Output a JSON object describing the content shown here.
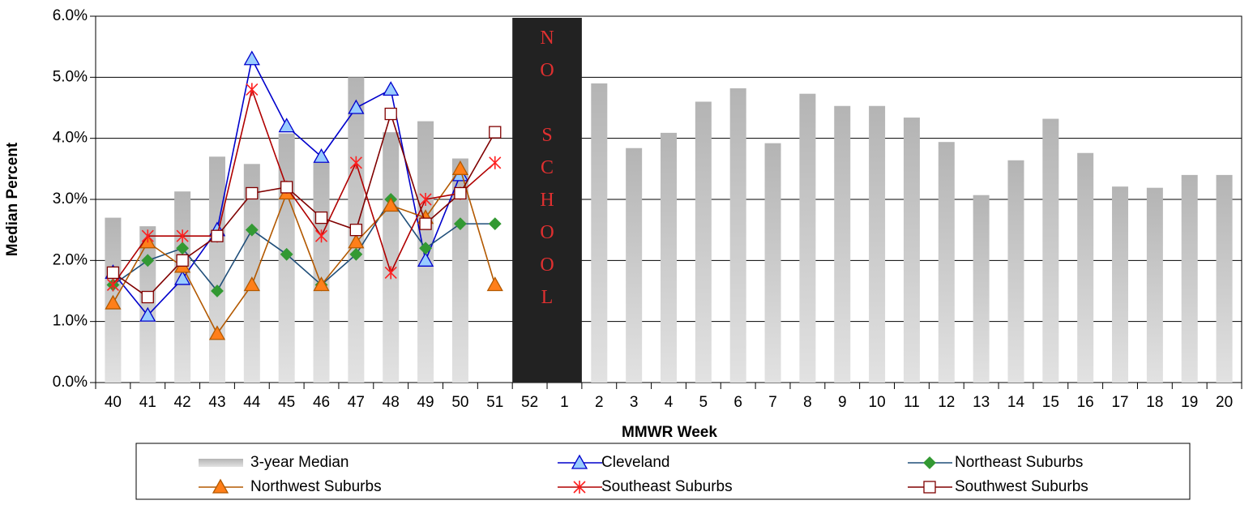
{
  "chart_data": {
    "type": "bar-line",
    "xlabel": "MMWR Week",
    "ylabel": "Median Percent",
    "categories": [
      "40",
      "41",
      "42",
      "43",
      "44",
      "45",
      "46",
      "47",
      "48",
      "49",
      "50",
      "51",
      "52",
      "1",
      "2",
      "3",
      "4",
      "5",
      "6",
      "7",
      "8",
      "9",
      "10",
      "11",
      "12",
      "13",
      "14",
      "15",
      "16",
      "17",
      "18",
      "19",
      "20"
    ],
    "ylim": [
      0,
      6
    ],
    "yticks": [
      {
        "value": 0,
        "label": "0.0%"
      },
      {
        "value": 1,
        "label": "1.0%"
      },
      {
        "value": 2,
        "label": "2.0%"
      },
      {
        "value": 3,
        "label": "3.0%"
      },
      {
        "value": 4,
        "label": "4.0%"
      },
      {
        "value": 5,
        "label": "5.0%"
      },
      {
        "value": 6,
        "label": "6.0%"
      }
    ],
    "grid": true,
    "annotation": {
      "text": "NO SCHOOL",
      "from": "52",
      "to": "1",
      "color": "#222222",
      "text_color": "#e03030"
    },
    "series": [
      {
        "name": "3-year Median",
        "style": "bar",
        "color": "#c0c0c0",
        "values": [
          2.7,
          2.56,
          3.13,
          3.7,
          3.58,
          4.08,
          3.6,
          5.0,
          4.1,
          4.28,
          3.67,
          null,
          null,
          null,
          4.9,
          3.84,
          4.09,
          4.6,
          4.82,
          3.92,
          4.73,
          4.53,
          4.53,
          4.34,
          3.94,
          3.07,
          3.64,
          4.32,
          3.76,
          3.21,
          3.19,
          3.4,
          3.4
        ]
      },
      {
        "name": "Cleveland",
        "style": "line",
        "marker": "triangle",
        "color": "#0000cc",
        "marker_fill": "#99ccff",
        "values": [
          1.8,
          1.1,
          1.7,
          2.5,
          5.3,
          4.2,
          3.7,
          4.5,
          4.8,
          2.0,
          3.4,
          null,
          null,
          null,
          null,
          null,
          null,
          null,
          null,
          null,
          null,
          null,
          null,
          null,
          null,
          null,
          null,
          null,
          null,
          null,
          null,
          null,
          null
        ]
      },
      {
        "name": "Northeast Suburbs",
        "style": "line",
        "marker": "diamond",
        "color": "#1f4e79",
        "marker_fill": "#339933",
        "values": [
          1.6,
          2.0,
          2.2,
          1.5,
          2.5,
          2.1,
          1.6,
          2.1,
          3.0,
          2.2,
          2.6,
          2.6,
          null,
          null,
          null,
          null,
          null,
          null,
          null,
          null,
          null,
          null,
          null,
          null,
          null,
          null,
          null,
          null,
          null,
          null,
          null,
          null,
          null
        ]
      },
      {
        "name": "Northwest Suburbs",
        "style": "line",
        "marker": "triangle",
        "color": "#b35900",
        "marker_fill": "#ff7f1a",
        "values": [
          1.3,
          2.3,
          1.9,
          0.8,
          1.6,
          3.1,
          1.6,
          2.3,
          2.9,
          2.7,
          3.5,
          1.6,
          null,
          null,
          null,
          null,
          null,
          null,
          null,
          null,
          null,
          null,
          null,
          null,
          null,
          null,
          null,
          null,
          null,
          null,
          null,
          null,
          null
        ]
      },
      {
        "name": "Southeast Suburbs",
        "style": "line",
        "marker": "asterisk",
        "color": "#b00000",
        "marker_fill": "#ff2020",
        "values": [
          1.6,
          2.4,
          2.4,
          2.4,
          4.8,
          3.2,
          2.4,
          3.6,
          1.8,
          3.0,
          3.1,
          3.6,
          null,
          null,
          null,
          null,
          null,
          null,
          null,
          null,
          null,
          null,
          null,
          null,
          null,
          null,
          null,
          null,
          null,
          null,
          null,
          null,
          null
        ]
      },
      {
        "name": "Southwest Suburbs",
        "style": "line",
        "marker": "square",
        "color": "#800000",
        "marker_fill": "#ffffff",
        "values": [
          1.8,
          1.4,
          2.0,
          2.4,
          3.1,
          3.2,
          2.7,
          2.5,
          4.4,
          2.6,
          3.1,
          4.1,
          null,
          null,
          null,
          null,
          null,
          null,
          null,
          null,
          null,
          null,
          null,
          null,
          null,
          null,
          null,
          null,
          null,
          null,
          null,
          null,
          null
        ]
      }
    ]
  }
}
